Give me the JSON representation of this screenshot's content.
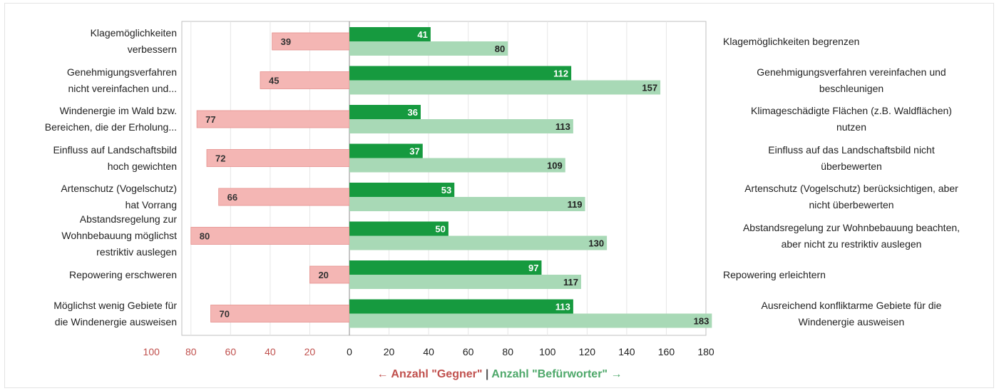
{
  "chart_data": {
    "type": "bar",
    "orientation": "horizontal-diverging",
    "x_axis": {
      "xlim": [
        -100,
        180
      ],
      "tick_labels": [
        "100",
        "80",
        "60",
        "40",
        "20",
        "0",
        "20",
        "40",
        "60",
        "80",
        "100",
        "120",
        "140",
        "160",
        "180"
      ],
      "tick_values": [
        -100,
        -80,
        -60,
        -40,
        -20,
        0,
        20,
        40,
        60,
        80,
        100,
        120,
        140,
        160,
        180
      ],
      "title_opponents": "← Anzahl \"Gegner\"",
      "title_separator": "|",
      "title_supporters": "Anzahl \"Befürworter\" →"
    },
    "grid": true,
    "colors": {
      "opponents": "#f4b6b4",
      "opponents_border": "#e5908c",
      "supporters_dark": "#169a3f",
      "supporters_light": "#a8d9b6",
      "tick_negative": "#c0504d",
      "tick_positive": "#222222",
      "axis_title_negative": "#c0504d",
      "axis_title_positive": "#4ea86a"
    },
    "categories": [
      {
        "left_label": [
          "Klagemöglichkeiten",
          "verbessern"
        ],
        "right_label": [
          "Klagemöglichkeiten begrenzen"
        ],
        "opponents": 39,
        "supporters_dark": 41,
        "supporters_light": 80
      },
      {
        "left_label": [
          "Genehmigungsverfahren",
          "nicht vereinfachen und..."
        ],
        "right_label": [
          "Genehmigungsverfahren vereinfachen und",
          "beschleunigen"
        ],
        "opponents": 45,
        "supporters_dark": 112,
        "supporters_light": 157
      },
      {
        "left_label": [
          "Windenergie im Wald bzw.",
          "Bereichen, die der Erholung..."
        ],
        "right_label": [
          "Klimageschädigte Flächen (z.B. Waldflächen)",
          "nutzen"
        ],
        "opponents": 77,
        "supporters_dark": 36,
        "supporters_light": 113
      },
      {
        "left_label": [
          "Einfluss auf Landschaftsbild",
          "hoch gewichten"
        ],
        "right_label": [
          "Einfluss auf das Landschaftsbild nicht",
          "überbewerten"
        ],
        "opponents": 72,
        "supporters_dark": 37,
        "supporters_light": 109
      },
      {
        "left_label": [
          "Artenschutz (Vogelschutz)",
          "hat Vorrang"
        ],
        "right_label": [
          "Artenschutz (Vogelschutz) berücksichtigen, aber",
          "nicht überbewerten"
        ],
        "opponents": 66,
        "supporters_dark": 53,
        "supporters_light": 119
      },
      {
        "left_label": [
          "Abstandsregelung zur",
          "Wohnbebauung möglichst",
          "restriktiv auslegen"
        ],
        "right_label": [
          "Abstandsregelung zur Wohnbebauung beachten,",
          "aber nicht zu restriktiv auslegen"
        ],
        "opponents": 80,
        "supporters_dark": 50,
        "supporters_light": 130
      },
      {
        "left_label": [
          "Repowering erschweren"
        ],
        "right_label": [
          "Repowering erleichtern"
        ],
        "opponents": 20,
        "supporters_dark": 97,
        "supporters_light": 117
      },
      {
        "left_label": [
          "Möglichst wenig Gebiete für",
          "die Windenergie ausweisen"
        ],
        "right_label": [
          "Ausreichend konfliktarme Gebiete für die",
          "Windenergie ausweisen"
        ],
        "opponents": 70,
        "supporters_dark": 113,
        "supporters_light": 183
      }
    ]
  }
}
